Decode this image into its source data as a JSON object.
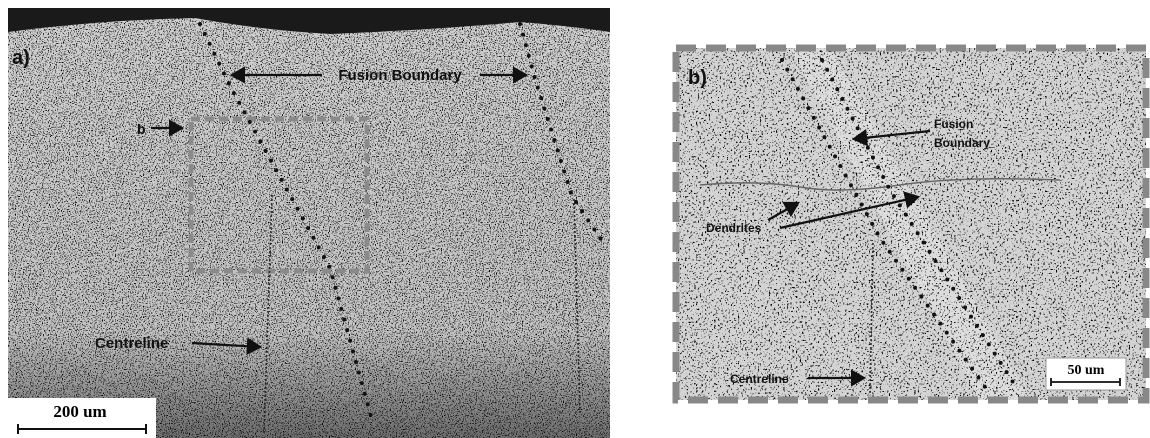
{
  "panel_a": {
    "label": "a)",
    "fusion_boundary": "Fusion Boundary",
    "inset_marker": "b",
    "centreline": "Centreline",
    "scale_bar": "200 um"
  },
  "panel_b": {
    "label": "b)",
    "fusion_boundary": [
      "Fusion",
      "Boundary"
    ],
    "dendrites": "Dendrites",
    "centreline": "Centreline",
    "scale_bar": "50 um"
  }
}
